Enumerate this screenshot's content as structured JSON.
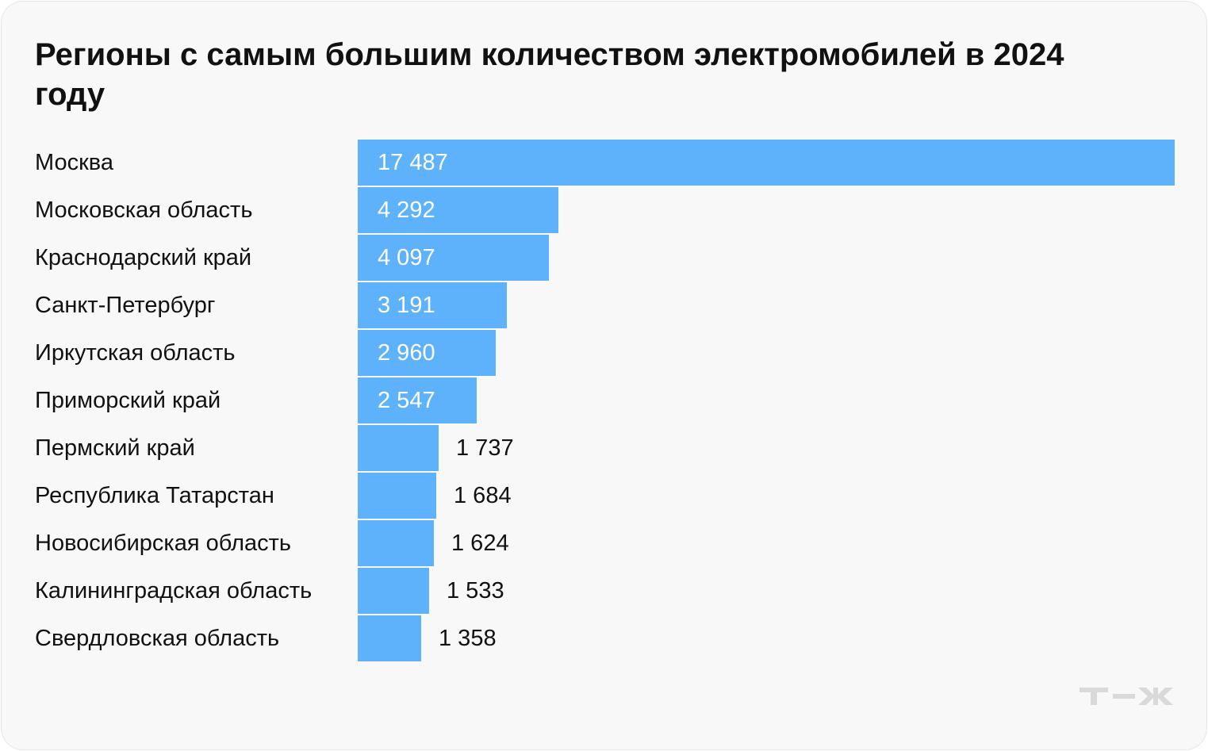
{
  "title": "Регионы с самым большим количеством электромобилей в 2024 году",
  "logo": "Т—Ж",
  "colors": {
    "bar": "#5eb2fb",
    "inside_label": "#ffffff",
    "outside_label": "#111111",
    "background": "#f8f8f8"
  },
  "chart_data": {
    "type": "bar",
    "orientation": "horizontal",
    "title": "Регионы с самым большим количеством электромобилей в 2024 году",
    "categories": [
      "Москва",
      "Московская область",
      "Краснодарский край",
      "Санкт-Петербург",
      "Иркутская область",
      "Приморский край",
      "Пермский край",
      "Республика Татарстан",
      "Новосибирская область",
      "Калининградская область",
      "Свердловская область"
    ],
    "values": [
      17487,
      4292,
      4097,
      3191,
      2960,
      2547,
      1737,
      1684,
      1624,
      1533,
      1358
    ],
    "value_labels": [
      "17 487",
      "4 292",
      "4 097",
      "3 191",
      "2 960",
      "2 547",
      "1 737",
      "1 684",
      "1 624",
      "1 533",
      "1 358"
    ],
    "grid": false,
    "legend": "none"
  }
}
